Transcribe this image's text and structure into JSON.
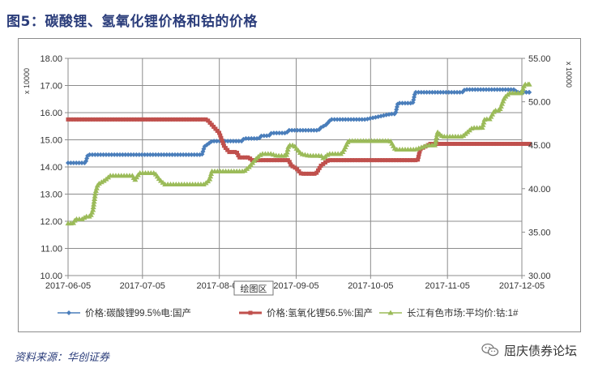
{
  "figure": {
    "title": "图5：碳酸锂、氢氧化锂价格和钴的价格",
    "source": "资料来源：华创证券",
    "watermark": "屈庆债券论坛",
    "watermark_icon": "wechat-icon"
  },
  "chart_data": {
    "type": "line",
    "title": "",
    "xlabel": "",
    "ylabel_left": "x 10000",
    "ylabel_right": "x 10000",
    "x_ticks": [
      "2017-06-05",
      "2017-07-05",
      "2017-08-05",
      "2017-09-05",
      "2017-10-05",
      "2017-11-05",
      "2017-12-05"
    ],
    "ylim_left": [
      10.0,
      18.0
    ],
    "ylim_right": [
      30.0,
      55.0
    ],
    "yticks_left": [
      "10.00",
      "11.00",
      "12.00",
      "13.00",
      "14.00",
      "15.00",
      "16.00",
      "17.00",
      "18.00"
    ],
    "yticks_right": [
      "30.00",
      "35.00",
      "40.00",
      "45.00",
      "50.00",
      "55.00"
    ],
    "grid": true,
    "legend_position": "bottom",
    "tooltip": "绘图区",
    "series": [
      {
        "name": "价格:碳酸锂99.5%电:国产",
        "axis": "left",
        "color": "#4a7ebb",
        "marker": "diamond",
        "points": [
          [
            "2017-06-05",
            14.15
          ],
          [
            "2017-06-12",
            14.15
          ],
          [
            "2017-06-13",
            14.45
          ],
          [
            "2017-07-19",
            14.45
          ],
          [
            "2017-07-20",
            14.45
          ],
          [
            "2017-07-29",
            14.45
          ],
          [
            "2017-07-30",
            14.75
          ],
          [
            "2017-08-02",
            14.95
          ],
          [
            "2017-08-14",
            14.95
          ],
          [
            "2017-08-15",
            15.05
          ],
          [
            "2017-08-21",
            15.05
          ],
          [
            "2017-08-22",
            15.15
          ],
          [
            "2017-08-25",
            15.15
          ],
          [
            "2017-08-26",
            15.25
          ],
          [
            "2017-09-01",
            15.25
          ],
          [
            "2017-09-02",
            15.35
          ],
          [
            "2017-09-14",
            15.35
          ],
          [
            "2017-09-15",
            15.45
          ],
          [
            "2017-09-17",
            15.55
          ],
          [
            "2017-09-18",
            15.65
          ],
          [
            "2017-09-19",
            15.75
          ],
          [
            "2017-10-03",
            15.75
          ],
          [
            "2017-10-13",
            15.95
          ],
          [
            "2017-10-15",
            15.95
          ],
          [
            "2017-10-16",
            16.35
          ],
          [
            "2017-10-22",
            16.35
          ],
          [
            "2017-10-23",
            16.75
          ],
          [
            "2017-11-11",
            16.75
          ],
          [
            "2017-11-12",
            16.85
          ],
          [
            "2017-12-02",
            16.85
          ],
          [
            "2017-12-03",
            16.75
          ],
          [
            "2017-12-08",
            16.75
          ]
        ]
      },
      {
        "name": "价格:氢氧化锂56.5%:国产",
        "axis": "left",
        "color": "#c0504d",
        "marker": "square",
        "points": [
          [
            "2017-06-05",
            15.75
          ],
          [
            "2017-07-31",
            15.75
          ],
          [
            "2017-08-05",
            15.25
          ],
          [
            "2017-08-07",
            14.75
          ],
          [
            "2017-08-09",
            14.55
          ],
          [
            "2017-08-12",
            14.55
          ],
          [
            "2017-08-13",
            14.35
          ],
          [
            "2017-08-17",
            14.35
          ],
          [
            "2017-08-18",
            14.25
          ],
          [
            "2017-09-02",
            14.25
          ],
          [
            "2017-09-03",
            14.05
          ],
          [
            "2017-09-05",
            13.95
          ],
          [
            "2017-09-07",
            13.75
          ],
          [
            "2017-09-13",
            13.75
          ],
          [
            "2017-09-15",
            14.05
          ],
          [
            "2017-09-18",
            14.25
          ],
          [
            "2017-09-29",
            14.25
          ],
          [
            "2017-10-06",
            14.25
          ],
          [
            "2017-10-24",
            14.25
          ],
          [
            "2017-10-25",
            14.65
          ],
          [
            "2017-10-27",
            14.75
          ],
          [
            "2017-10-29",
            14.85
          ],
          [
            "2017-12-08",
            14.85
          ]
        ]
      },
      {
        "name": "长江有色市场:平均价:钴:1#",
        "axis": "right",
        "color": "#9bbb59",
        "marker": "triangle",
        "points": [
          [
            "2017-06-05",
            36.0
          ],
          [
            "2017-06-07",
            36.0
          ],
          [
            "2017-06-08",
            36.5
          ],
          [
            "2017-06-11",
            36.5
          ],
          [
            "2017-06-12",
            36.8
          ],
          [
            "2017-06-14",
            36.8
          ],
          [
            "2017-06-15",
            37.5
          ],
          [
            "2017-06-16",
            39.5
          ],
          [
            "2017-06-17",
            40.5
          ],
          [
            "2017-06-20",
            41.0
          ],
          [
            "2017-06-22",
            41.5
          ],
          [
            "2017-07-01",
            41.5
          ],
          [
            "2017-07-02",
            41.0
          ],
          [
            "2017-07-03",
            41.5
          ],
          [
            "2017-07-04",
            41.8
          ],
          [
            "2017-07-10",
            41.8
          ],
          [
            "2017-07-12",
            41.0
          ],
          [
            "2017-07-14",
            40.5
          ],
          [
            "2017-07-30",
            40.5
          ],
          [
            "2017-08-01",
            41.0
          ],
          [
            "2017-08-02",
            42.0
          ],
          [
            "2017-08-15",
            42.0
          ],
          [
            "2017-08-17",
            42.5
          ],
          [
            "2017-08-20",
            43.5
          ],
          [
            "2017-08-22",
            44.0
          ],
          [
            "2017-08-26",
            44.0
          ],
          [
            "2017-08-28",
            43.8
          ],
          [
            "2017-09-01",
            43.8
          ],
          [
            "2017-09-02",
            45.0
          ],
          [
            "2017-09-04",
            45.0
          ],
          [
            "2017-09-07",
            44.0
          ],
          [
            "2017-09-10",
            43.8
          ],
          [
            "2017-09-15",
            43.8
          ],
          [
            "2017-09-16",
            43.5
          ],
          [
            "2017-09-18",
            44.0
          ],
          [
            "2017-09-23",
            44.0
          ],
          [
            "2017-09-24",
            44.3
          ],
          [
            "2017-09-26",
            45.5
          ],
          [
            "2017-10-10",
            45.5
          ],
          [
            "2017-10-13",
            45.5
          ],
          [
            "2017-10-15",
            44.5
          ],
          [
            "2017-10-20",
            44.5
          ],
          [
            "2017-10-23",
            44.5
          ],
          [
            "2017-10-26",
            44.8
          ],
          [
            "2017-10-28",
            45.0
          ],
          [
            "2017-10-31",
            45.0
          ],
          [
            "2017-11-01",
            46.5
          ],
          [
            "2017-11-03",
            46.0
          ],
          [
            "2017-11-09",
            46.0
          ],
          [
            "2017-11-11",
            46.0
          ],
          [
            "2017-11-13",
            46.5
          ],
          [
            "2017-11-15",
            47.0
          ],
          [
            "2017-11-19",
            47.0
          ],
          [
            "2017-11-20",
            48.0
          ],
          [
            "2017-11-22",
            48.0
          ],
          [
            "2017-11-24",
            49.0
          ],
          [
            "2017-11-26",
            49.0
          ],
          [
            "2017-11-28",
            50.5
          ],
          [
            "2017-11-30",
            51.0
          ],
          [
            "2017-12-05",
            51.0
          ],
          [
            "2017-12-06",
            52.0
          ],
          [
            "2017-12-08",
            52.0
          ]
        ]
      }
    ]
  }
}
